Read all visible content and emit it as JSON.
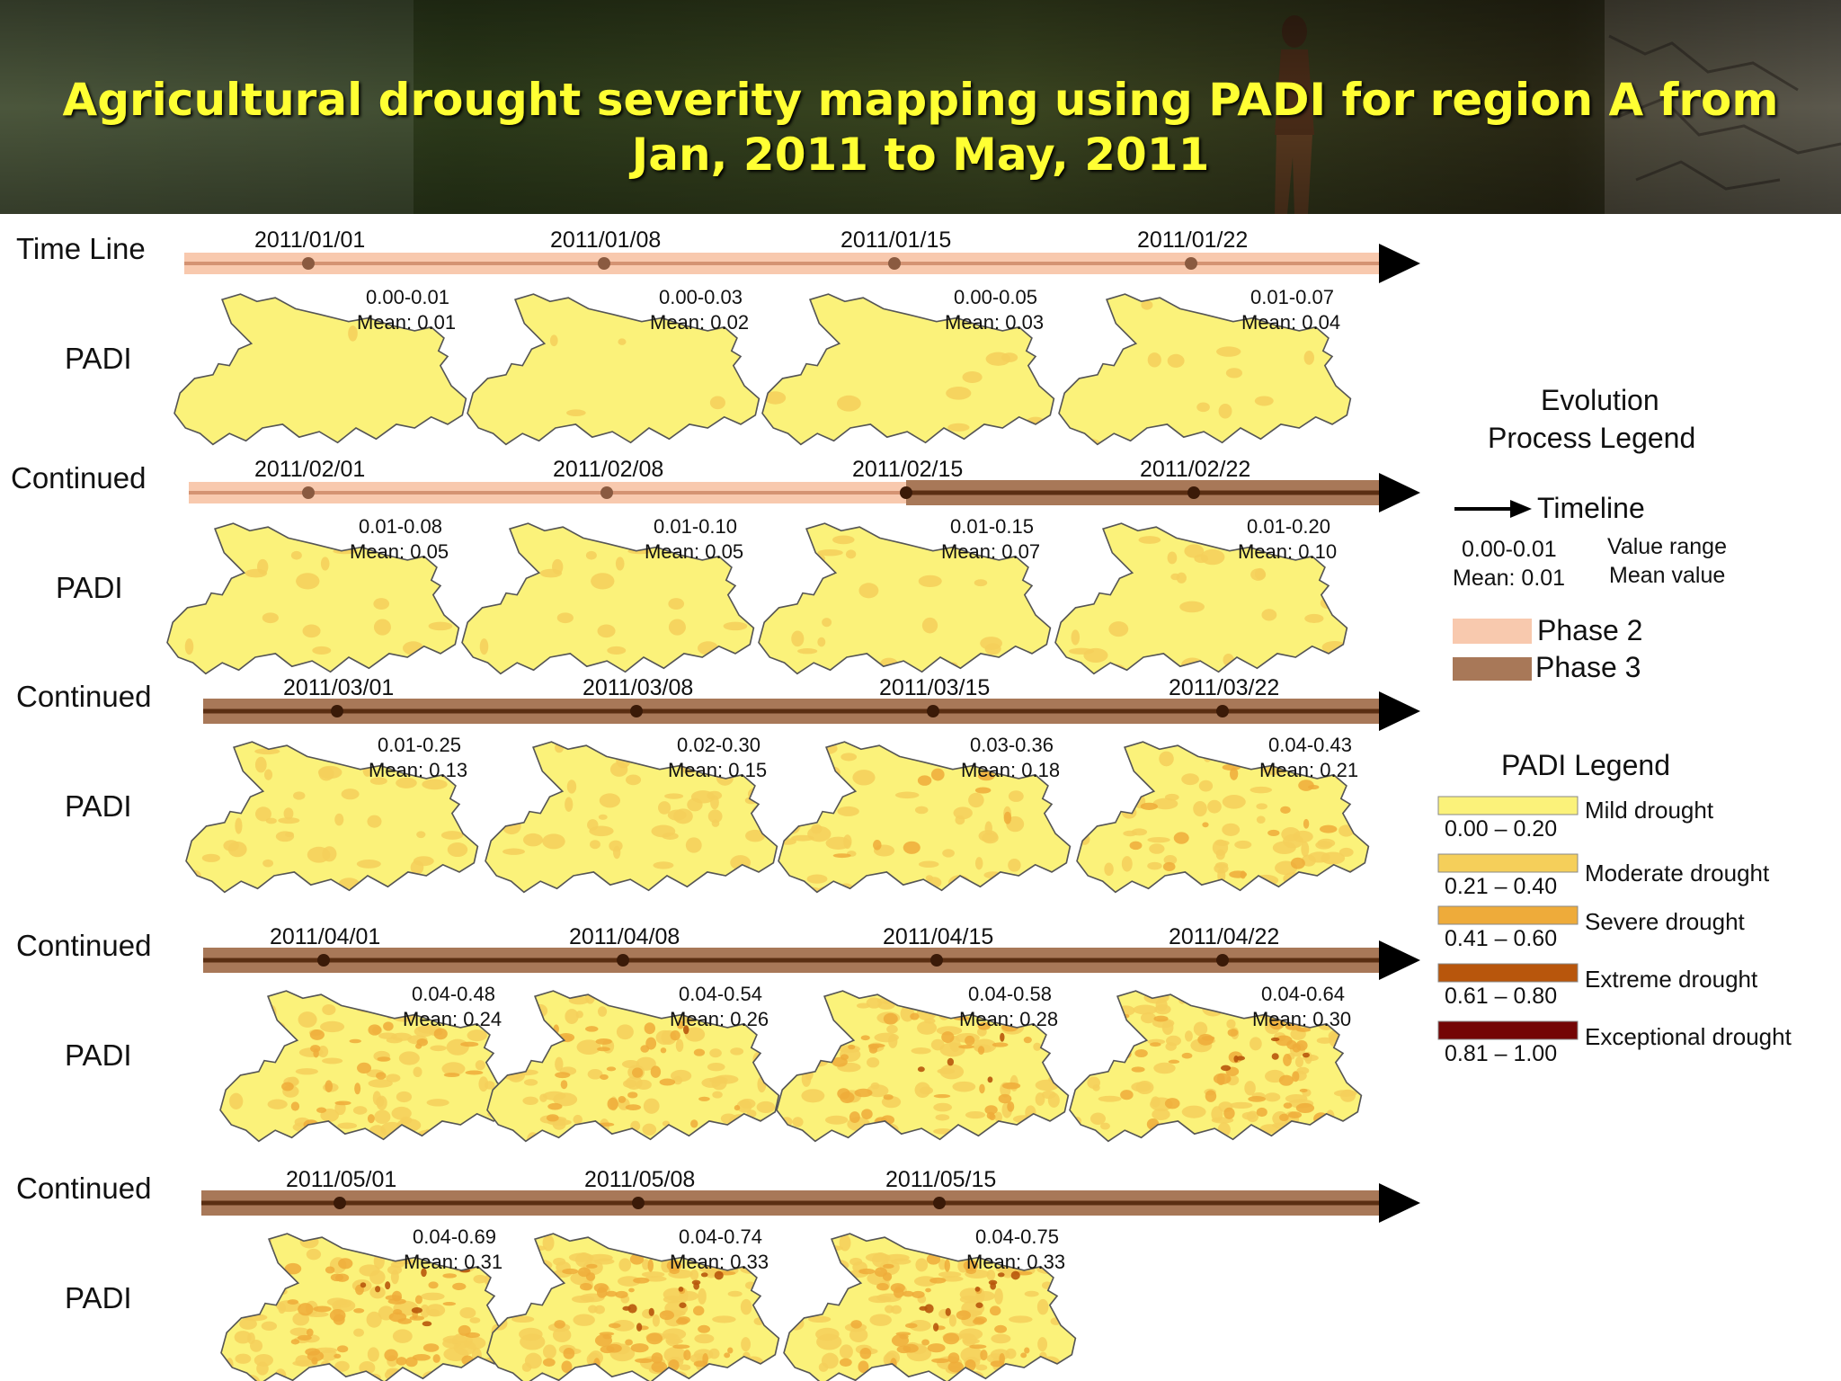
{
  "title": {
    "line1": "Agricultural drought severity mapping using PADI for region A from",
    "line2": "Jan, 2011 to May, 2011"
  },
  "rows": [
    {
      "row_label": "Time Line",
      "map_label": "PADI",
      "maps": [
        {
          "date": "2011/01/01",
          "range": "0.00-0.01",
          "mean": "Mean: 0.01",
          "padi_mean": 0.01,
          "phase": 2
        },
        {
          "date": "2011/01/08",
          "range": "0.00-0.03",
          "mean": "Mean: 0.02",
          "padi_mean": 0.02,
          "phase": 2
        },
        {
          "date": "2011/01/15",
          "range": "0.00-0.05",
          "mean": "Mean: 0.03",
          "padi_mean": 0.03,
          "phase": 2
        },
        {
          "date": "2011/01/22",
          "range": "0.01-0.07",
          "mean": "Mean: 0.04",
          "padi_mean": 0.04,
          "phase": 2
        }
      ]
    },
    {
      "row_label": "Continued",
      "map_label": "PADI",
      "maps": [
        {
          "date": "2011/02/01",
          "range": "0.01-0.08",
          "mean": "Mean: 0.05",
          "padi_mean": 0.05,
          "phase": 2
        },
        {
          "date": "2011/02/08",
          "range": "0.01-0.10",
          "mean": "Mean: 0.05",
          "padi_mean": 0.05,
          "phase": 2
        },
        {
          "date": "2011/02/15",
          "range": "0.01-0.15",
          "mean": "Mean: 0.07",
          "padi_mean": 0.07,
          "phase": 3
        },
        {
          "date": "2011/02/22",
          "range": "0.01-0.20",
          "mean": "Mean: 0.10",
          "padi_mean": 0.1,
          "phase": 3
        }
      ]
    },
    {
      "row_label": "Continued",
      "map_label": "PADI",
      "maps": [
        {
          "date": "2011/03/01",
          "range": "0.01-0.25",
          "mean": "Mean: 0.13",
          "padi_mean": 0.13,
          "phase": 3
        },
        {
          "date": "2011/03/08",
          "range": "0.02-0.30",
          "mean": "Mean: 0.15",
          "padi_mean": 0.15,
          "phase": 3
        },
        {
          "date": "2011/03/15",
          "range": "0.03-0.36",
          "mean": "Mean: 0.18",
          "padi_mean": 0.18,
          "phase": 3
        },
        {
          "date": "2011/03/22",
          "range": "0.04-0.43",
          "mean": "Mean: 0.21",
          "padi_mean": 0.21,
          "phase": 3
        }
      ]
    },
    {
      "row_label": "Continued",
      "map_label": "PADI",
      "maps": [
        {
          "date": "2011/04/01",
          "range": "0.04-0.48",
          "mean": "Mean: 0.24",
          "padi_mean": 0.24,
          "phase": 3
        },
        {
          "date": "2011/04/08",
          "range": "0.04-0.54",
          "mean": "Mean: 0.26",
          "padi_mean": 0.26,
          "phase": 3
        },
        {
          "date": "2011/04/15",
          "range": "0.04-0.58",
          "mean": "Mean: 0.28",
          "padi_mean": 0.28,
          "phase": 3
        },
        {
          "date": "2011/04/22",
          "range": "0.04-0.64",
          "mean": "Mean: 0.30",
          "padi_mean": 0.3,
          "phase": 3
        }
      ]
    },
    {
      "row_label": "Continued",
      "map_label": "PADI",
      "maps": [
        {
          "date": "2011/05/01",
          "range": "0.04-0.69",
          "mean": "Mean: 0.31",
          "padi_mean": 0.31,
          "phase": 3
        },
        {
          "date": "2011/05/08",
          "range": "0.04-0.74",
          "mean": "Mean: 0.33",
          "padi_mean": 0.33,
          "phase": 3
        },
        {
          "date": "2011/05/15",
          "range": "0.04-0.75",
          "mean": "Mean: 0.33",
          "padi_mean": 0.33,
          "phase": 3
        }
      ]
    }
  ],
  "evolution_legend": {
    "title_line1": "Evolution",
    "title_line2": "Process Legend",
    "timeline": "Timeline",
    "value_range_example": "0.00-0.01",
    "value_range_desc": "Value range",
    "mean_example": "Mean: 0.01",
    "mean_desc": "Mean value",
    "phase2": {
      "label": "Phase 2",
      "color": "#f8c9ae"
    },
    "phase3": {
      "label": "Phase 3",
      "color": "#a87858"
    }
  },
  "padi_legend": {
    "title": "PADI Legend",
    "classes": [
      {
        "range": "0.00 – 0.20",
        "label": "Mild drought",
        "color": "#fbf27a"
      },
      {
        "range": "0.21 – 0.40",
        "label": "Moderate drought",
        "color": "#f5cf5a"
      },
      {
        "range": "0.41 – 0.60",
        "label": "Severe drought",
        "color": "#eeab3a"
      },
      {
        "range": "0.61 – 0.80",
        "label": "Extreme drought",
        "color": "#b8560c"
      },
      {
        "range": "0.81 – 1.00",
        "label": "Exceptional drought",
        "color": "#740505"
      }
    ]
  },
  "colors": {
    "title_text": "#ffff33",
    "header_background": "#2b3019",
    "phase2_band": "#f8c9ae",
    "phase2_line": "#d49373",
    "phase3_band": "#a87858",
    "phase3_line": "#5a2e12"
  }
}
